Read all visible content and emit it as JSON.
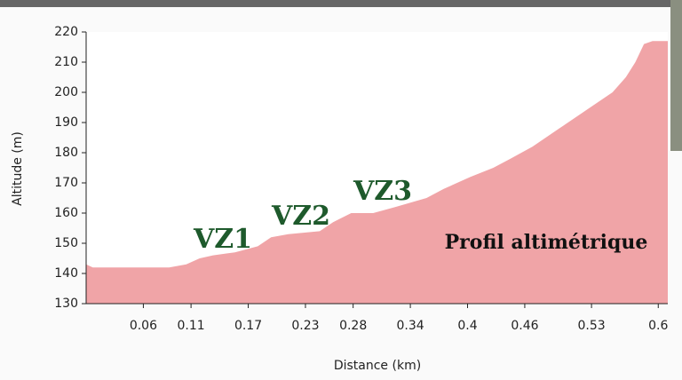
{
  "chart_data": {
    "type": "area",
    "x_label": "Distance (km)",
    "y_label": "Altitude (m)",
    "color": "#f0a4a7",
    "x": [
      0,
      0.007,
      0.087,
      0.105,
      0.119,
      0.133,
      0.156,
      0.18,
      0.194,
      0.212,
      0.245,
      0.259,
      0.278,
      0.301,
      0.324,
      0.357,
      0.375,
      0.403,
      0.427,
      0.445,
      0.468,
      0.496,
      0.524,
      0.552,
      0.566,
      0.576,
      0.585,
      0.594,
      0.61
    ],
    "values": [
      143,
      142,
      142,
      143,
      145,
      146,
      147,
      149,
      152,
      153,
      154,
      157,
      160,
      160,
      162,
      165,
      168,
      172,
      175,
      178,
      182,
      188,
      194,
      200,
      205,
      210,
      216,
      217,
      217
    ],
    "xlim": [
      0,
      0.61
    ],
    "ylim": [
      130,
      220
    ],
    "xticks": [
      0.06,
      0.11,
      0.17,
      0.23,
      0.28,
      0.34,
      0.4,
      0.46,
      0.53,
      0.6
    ],
    "yticks": [
      130,
      140,
      150,
      160,
      170,
      180,
      190,
      200,
      210,
      220
    ],
    "annotations": [
      "VZ1",
      "VZ2",
      "VZ3",
      "Profil altimétrique"
    ]
  }
}
